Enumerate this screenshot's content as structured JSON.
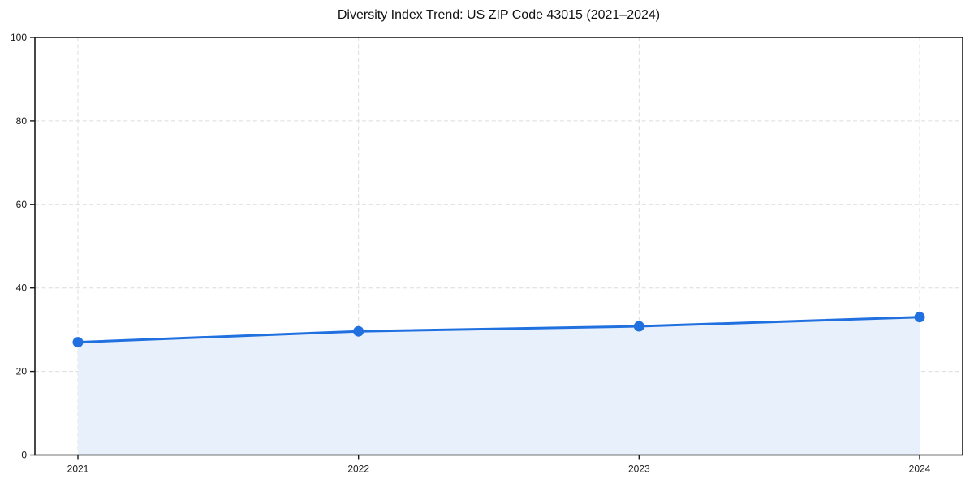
{
  "title": "Diversity Index Trend: US ZIP Code 43015 (2021–2024)",
  "chart_data": {
    "type": "area",
    "title": "Diversity Index Trend: US ZIP Code 43015 (2021–2024)",
    "categories": [
      "2021",
      "2022",
      "2023",
      "2024"
    ],
    "values": [
      27,
      29.6,
      30.8,
      33
    ],
    "series_name": "Diversity Index",
    "xlabel": "",
    "ylabel": "",
    "ylim": [
      0,
      100
    ],
    "yticks": [
      0,
      20,
      40,
      60,
      80,
      100
    ],
    "grid": true,
    "grid_style": "dashed",
    "legend": "none",
    "marker": "circle",
    "colors": {
      "line": "#2170e0",
      "marker": "#2170e0",
      "fill": "#e8f0fb",
      "gridline": "#dcdcdc",
      "axis": "#1a1a1a",
      "text": "#1a1a1a",
      "background": "#ffffff"
    }
  }
}
